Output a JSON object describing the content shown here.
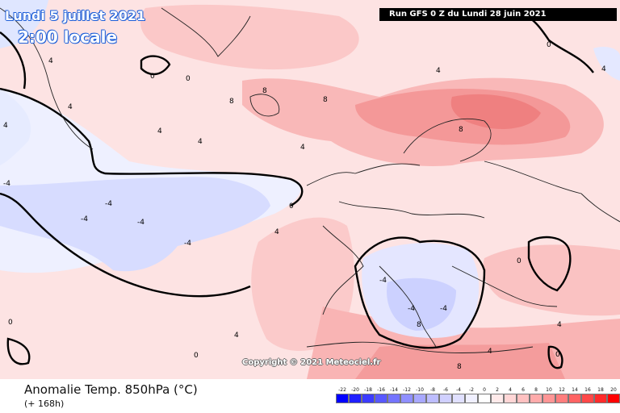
{
  "header": {
    "date_line": "Lundi 5 juillet 2021",
    "time_line": "2:00 locale",
    "run_info": "Run GFS 0 Z du Lundi 28 juin 2021"
  },
  "map": {
    "copyright": "Copyright © 2021 Meteociel.fr",
    "contour_labels": [
      "-4",
      "0",
      "4",
      "8"
    ]
  },
  "footer": {
    "title": "Anomalie Temp. 850hPa (°C)",
    "subtitle": "(+ 168h)"
  },
  "legend": {
    "labels": [
      "-22",
      "-20",
      "-18",
      "-16",
      "-14",
      "-12",
      "-10",
      "-8",
      "-6",
      "-4",
      "-2",
      "0",
      "2",
      "4",
      "6",
      "8",
      "10",
      "12",
      "14",
      "16",
      "18",
      "20"
    ],
    "colors": [
      "#0000ff",
      "#1f1fff",
      "#3c3cff",
      "#5858ff",
      "#7474ff",
      "#8f8fff",
      "#a8a8ff",
      "#bdbdff",
      "#d0d0ff",
      "#e0e0ff",
      "#f0f0ff",
      "#ffffff",
      "#ffeaea",
      "#ffd6d6",
      "#ffc1c1",
      "#ffabab",
      "#ff9595",
      "#ff7d7d",
      "#ff6363",
      "#ff4848",
      "#ff2b2b",
      "#ff0000"
    ]
  }
}
